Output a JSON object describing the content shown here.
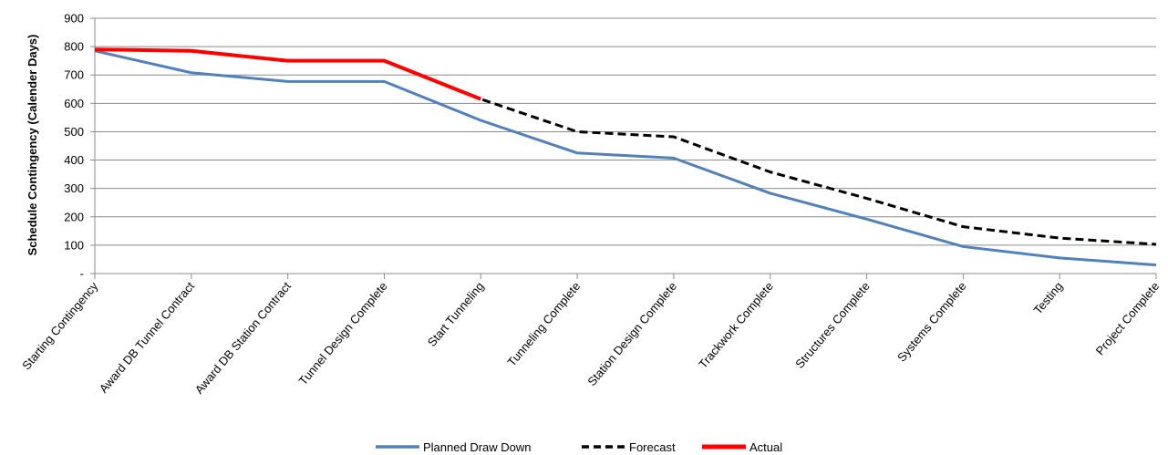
{
  "chart_data": {
    "type": "line",
    "ylabel": "Schedule Contingency (Calender Days)",
    "xlabel": "",
    "ylim": [
      0,
      900
    ],
    "yticks": [
      0,
      100,
      200,
      300,
      400,
      500,
      600,
      700,
      800,
      900
    ],
    "ytick_labels": [
      "-",
      "100",
      "200",
      "300",
      "400",
      "500",
      "600",
      "700",
      "800",
      "900"
    ],
    "grid": true,
    "legend_position": "bottom",
    "categories": [
      "Starting Contingency",
      "Award DB Tunnel Contract",
      "Award DB Station Contract",
      "Tunnel Design Complete",
      "Start Tunneling",
      "Tunneling Complete",
      "Station Design Complete",
      "Trackwork Complete",
      "Structures Complete",
      "Systems Complete",
      "Testing",
      "Project Complete"
    ],
    "series": [
      {
        "name": "Planned Draw Down",
        "color": "#4F81BD",
        "style": "solid",
        "values": [
          785,
          708,
          677,
          677,
          540,
          425,
          407,
          283,
          192,
          95,
          55,
          30
        ]
      },
      {
        "name": "Forecast",
        "color": "#000000",
        "style": "dashed",
        "values": [
          790,
          785,
          750,
          750,
          615,
          500,
          482,
          358,
          265,
          165,
          125,
          103
        ]
      },
      {
        "name": "Actual",
        "color": "#FF0000",
        "style": "solid",
        "values": [
          790,
          785,
          750,
          750,
          615,
          null,
          null,
          null,
          null,
          null,
          null,
          null
        ]
      }
    ]
  }
}
